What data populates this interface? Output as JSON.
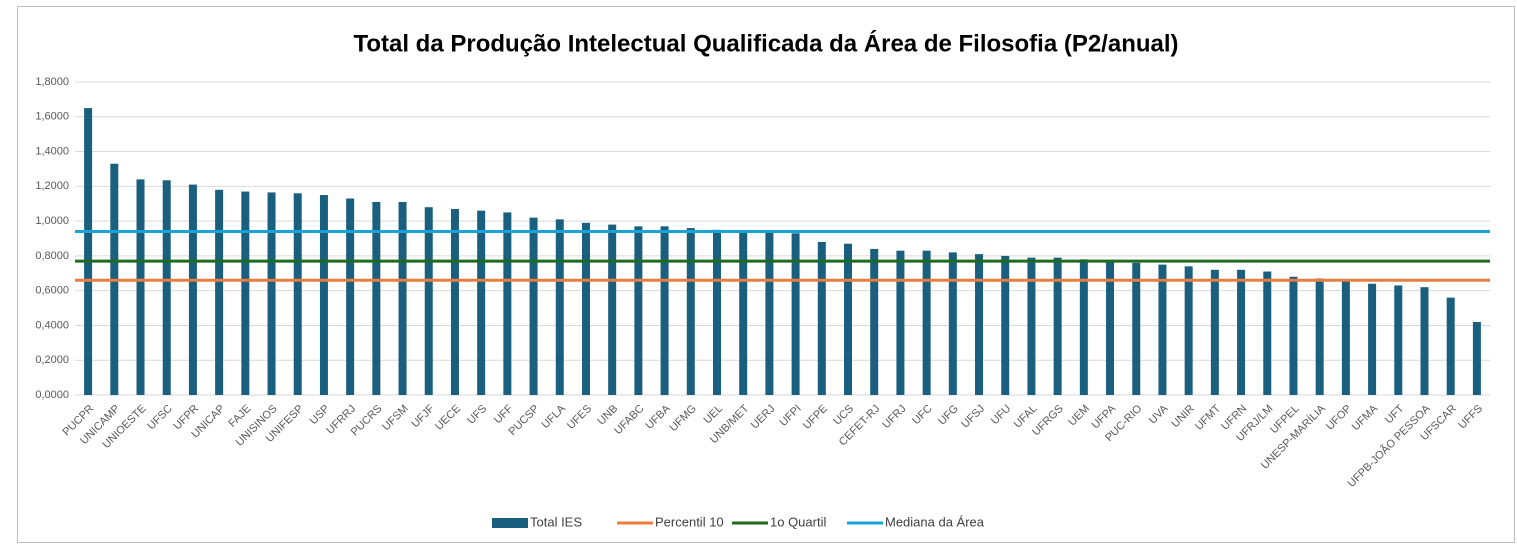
{
  "chart_data": {
    "type": "bar",
    "title": "Total da Produção Intelectual Qualificada da Área de Filosofia (P2/anual)",
    "categories": [
      "PUCPR",
      "UNICAMP",
      "UNIOESTE",
      "UFSC",
      "UFPR",
      "UNICAP",
      "FAJE",
      "UNISINOS",
      "UNIFESP",
      "USP",
      "UFRRJ",
      "PUCRS",
      "UFSM",
      "UFJF",
      "UECE",
      "UFS",
      "UFF",
      "PUCSP",
      "UFLA",
      "UFES",
      "UNB",
      "UFABC",
      "UFBA",
      "UFMG",
      "UEL",
      "UNB/MET",
      "UERJ",
      "UFPI",
      "UFPE",
      "UCS",
      "CEFET-RJ",
      "UFRJ",
      "UFC",
      "UFG",
      "UFSJ",
      "UFU",
      "UFAL",
      "UFRGS",
      "UEM",
      "UFPA",
      "PUC-RIO",
      "UVA",
      "UNIR",
      "UFMT",
      "UFRN",
      "UFRJ/LM",
      "UFPEL",
      "UNESP-MARÍLIA",
      "UFOP",
      "UFMA",
      "UFT",
      "UFPB-JOÃO PESSOA",
      "UFSCAR",
      "UFFS"
    ],
    "series": [
      {
        "name": "Total IES",
        "color": "#1b5f7e",
        "values": [
          1.65,
          1.33,
          1.24,
          1.235,
          1.21,
          1.18,
          1.17,
          1.165,
          1.16,
          1.15,
          1.13,
          1.11,
          1.11,
          1.08,
          1.07,
          1.06,
          1.05,
          1.02,
          1.01,
          0.99,
          0.98,
          0.97,
          0.97,
          0.96,
          0.95,
          0.94,
          0.94,
          0.93,
          0.88,
          0.87,
          0.84,
          0.83,
          0.83,
          0.82,
          0.81,
          0.8,
          0.79,
          0.79,
          0.78,
          0.77,
          0.76,
          0.75,
          0.74,
          0.72,
          0.72,
          0.71,
          0.68,
          0.67,
          0.66,
          0.64,
          0.63,
          0.62,
          0.56,
          0.42
        ]
      }
    ],
    "reference_lines": [
      {
        "name": "Percentil 10",
        "color": "#e97d3f",
        "value": 0.66
      },
      {
        "name": "1o Quartil",
        "color": "#1e6b1e",
        "value": 0.77
      },
      {
        "name": "Mediana da Área",
        "color": "#1aa3d9",
        "value": 0.94
      }
    ],
    "ylim": [
      0,
      1.8
    ],
    "yticks": [
      {
        "value": 0,
        "label": "0,0000"
      },
      {
        "value": 0.2,
        "label": "0,2000"
      },
      {
        "value": 0.4,
        "label": "0,4000"
      },
      {
        "value": 0.6,
        "label": "0,6000"
      },
      {
        "value": 0.8,
        "label": "0,8000"
      },
      {
        "value": 1.0,
        "label": "1,0000"
      },
      {
        "value": 1.2,
        "label": "1,2000"
      },
      {
        "value": 1.4,
        "label": "1,4000"
      },
      {
        "value": 1.6,
        "label": "1,6000"
      },
      {
        "value": 1.8,
        "label": "1,8000"
      }
    ],
    "grid": true,
    "legend": "bottom"
  }
}
